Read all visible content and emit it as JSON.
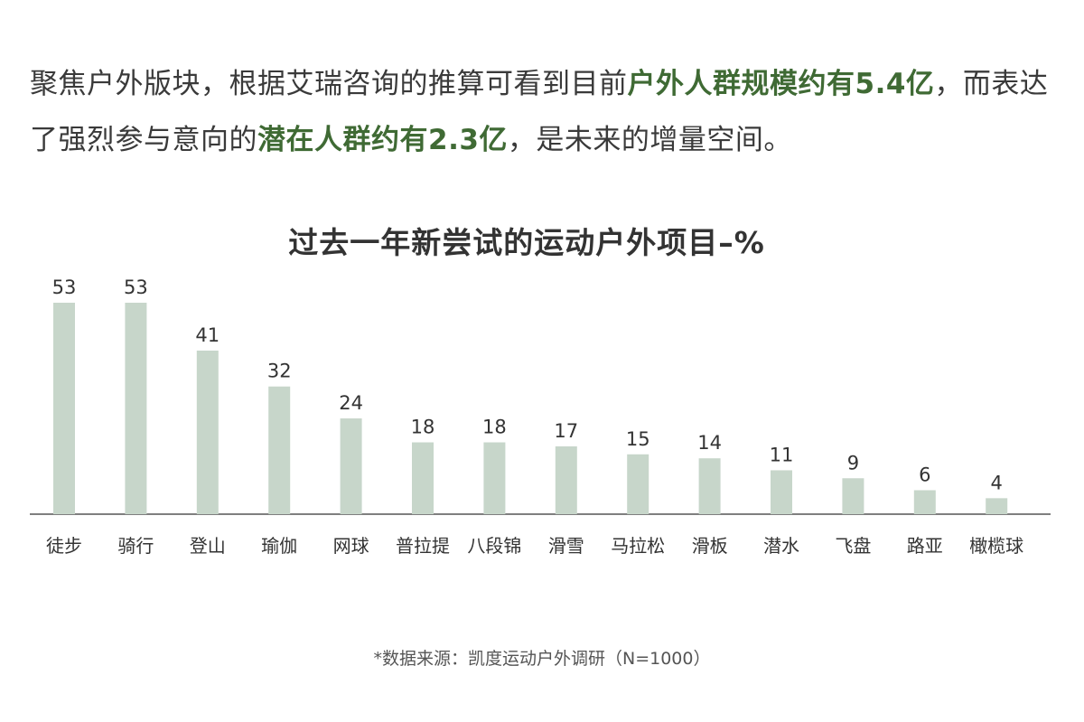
{
  "intro": {
    "line1_a": "聚焦户外版块，根据艾瑞咨询的推算可看到目前",
    "line1_hl": "户外人群规模约有5.4亿",
    "line1_b": "，而表达",
    "line2_a": "了强烈参与意向的",
    "line2_hl": "潜在人群约有2.3亿",
    "line2_b": "，是未来的增量空间。"
  },
  "colors": {
    "bar": "#c7d6ca",
    "highlight": "#3f6a34",
    "axis": "#555555"
  },
  "chart_data": {
    "type": "bar",
    "title": "过去一年新尝试的运动户外项目–%",
    "categories": [
      "徒步",
      "骑行",
      "登山",
      "瑜伽",
      "网球",
      "普拉提",
      "八段锦",
      "滑雪",
      "马拉松",
      "滑板",
      "潜水",
      "飞盘",
      "路亚",
      "橄榄球"
    ],
    "values": [
      53,
      53,
      41,
      32,
      24,
      18,
      18,
      17,
      15,
      14,
      11,
      9,
      6,
      4
    ],
    "ylim": [
      0,
      53
    ],
    "grid": false,
    "legend": "none",
    "data_labels": true
  },
  "source": "*数据来源：凯度运动户外调研（N=1000）"
}
